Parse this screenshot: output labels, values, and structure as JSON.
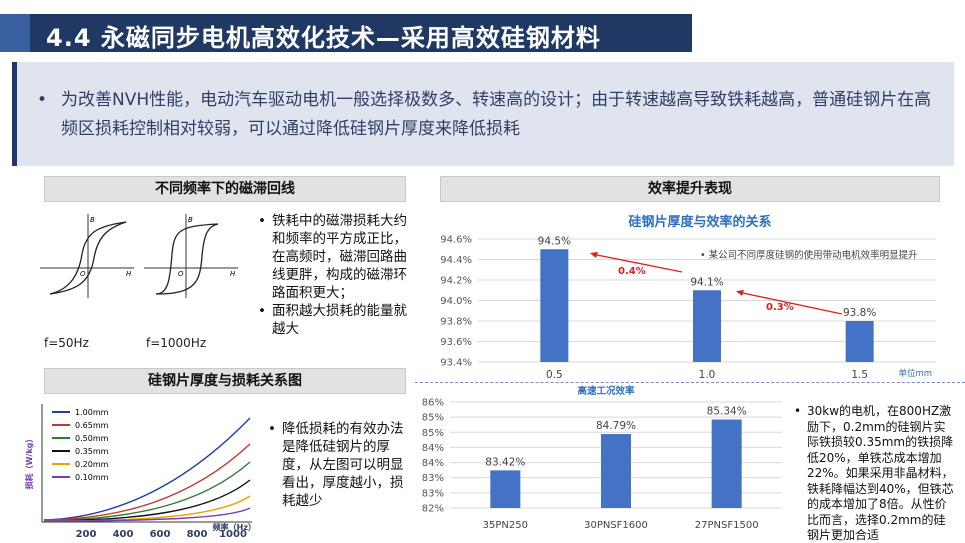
{
  "title": "4.4 永磁同步电机高效化技术—采用高效硅钢材料",
  "intro": {
    "bullet": "•",
    "text": "为改善NVH性能，电动汽车驱动电机一般选择极数多、转速高的设计；由于转速越高导致铁耗越高，普通硅钢片在高频区损耗控制相对较弱，可以通过降低硅钢片厚度来降低损耗"
  },
  "hysteresis": {
    "header": "不同频率下的磁滞回线",
    "axis_b": "B",
    "axis_h": "H",
    "origin": "O",
    "label_left": "f=50Hz",
    "label_right": "f=1000Hz",
    "points": [
      "铁耗中的磁滞损耗大约和频率的平方成正比，在高频时，磁滞回路曲线更胖，构成的磁滞环路面积更大；",
      "面积越大损耗的能量就越大"
    ]
  },
  "thickness": {
    "header": "硅钢片厚度与损耗关系图",
    "legend": [
      "1.00mm",
      "0.65mm",
      "0.50mm",
      "0.35mm",
      "0.20mm",
      "0.10mm"
    ],
    "x_ticks": [
      "200",
      "400",
      "600",
      "800",
      "1000"
    ],
    "x_label": "频率（Hz）",
    "y_label": "损耗（W/kg）",
    "points": [
      "降低损耗的有效办法是降低硅钢片的厚度，从左图可以明显看出，厚度越小，损耗越少"
    ]
  },
  "efficiency": {
    "header": "效率提升表现",
    "note": "• 某公司不同厚度硅钢的使用带动电机效率明显提升",
    "arrow1": "0.4%",
    "arrow2": "0.3%",
    "unit": "单位mm"
  },
  "highspeed_note": [
    "30kw的电机，在800HZ激励下，0.2mm的硅钢片实际铁损较0.35mm的铁损降低20%，单铁芯成本增加22%。如果采用非晶材料，铁耗降幅达到40%，但铁芯的成本增加了8倍。从性价比而言，选择0.2mm的硅钢片更加合适"
  ],
  "chart_data": [
    {
      "type": "bar",
      "title": "硅钢片厚度与效率的关系",
      "categories": [
        "0.5",
        "1.0",
        "1.5"
      ],
      "values": [
        94.5,
        94.1,
        93.8
      ],
      "data_labels": [
        "94.5%",
        "94.1%",
        "93.8%"
      ],
      "y_ticks": [
        "93.4%",
        "93.6%",
        "93.8%",
        "94.0%",
        "94.2%",
        "94.4%",
        "94.6%"
      ],
      "ylim": [
        93.4,
        94.6
      ],
      "xlabel": "单位mm",
      "grid": true,
      "color": "#4472c4"
    },
    {
      "type": "bar",
      "title": "高速工况效率",
      "categories": [
        "35PN250",
        "30PNSF1600",
        "27PNSF1500"
      ],
      "values": [
        83.42,
        84.79,
        85.34
      ],
      "data_labels": [
        "83.42%",
        "84.79%",
        "85.34%"
      ],
      "y_ticks": [
        "82%",
        "83%",
        "83%",
        "84%",
        "84%",
        "85%",
        "85%",
        "86%"
      ],
      "ylim": [
        82,
        86
      ],
      "grid": true,
      "color": "#4472c4"
    }
  ]
}
